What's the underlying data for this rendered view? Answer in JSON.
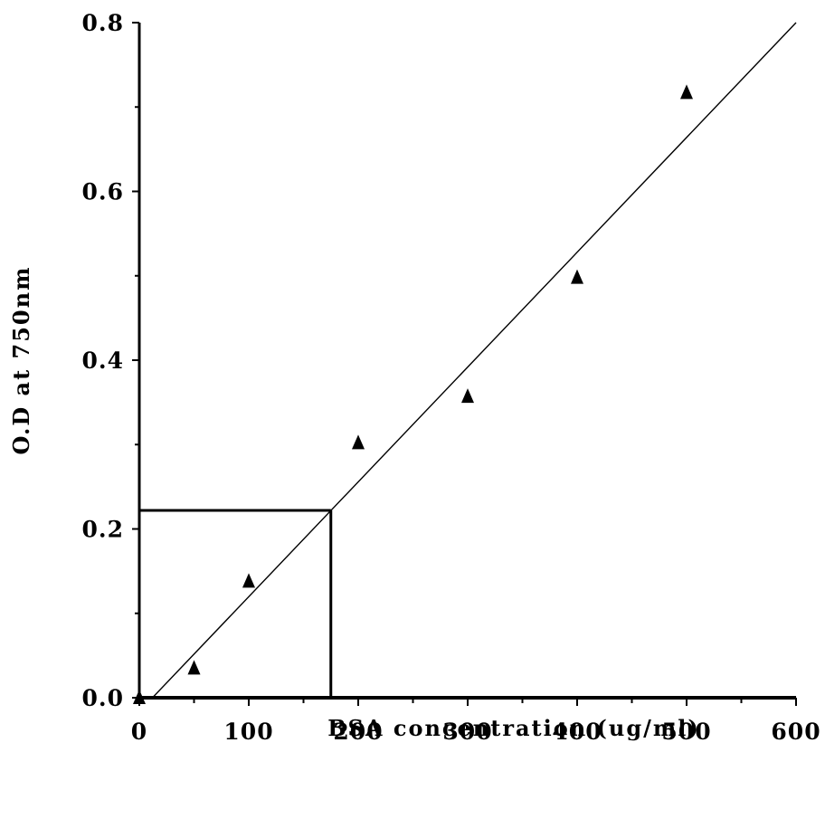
{
  "chart_data": {
    "type": "scatter",
    "title": "",
    "xlabel": "BSA concentration (ug/ml)",
    "ylabel": "O.D at 750nm",
    "xlim": [
      0,
      600
    ],
    "ylim": [
      0,
      0.8
    ],
    "xticks": [
      0,
      100,
      200,
      300,
      400,
      500,
      600
    ],
    "xtick_labels": [
      "0",
      "100",
      "200",
      "300",
      "400",
      "500",
      "600"
    ],
    "yticks": [
      0.0,
      0.2,
      0.4,
      0.6,
      0.8
    ],
    "ytick_labels": [
      "0.0",
      "0.2",
      "0.4",
      "0.6",
      "0.8"
    ],
    "grid": false,
    "marker": "triangle",
    "points": [
      {
        "x": 0,
        "y": 0.0
      },
      {
        "x": 50,
        "y": 0.035
      },
      {
        "x": 100,
        "y": 0.138
      },
      {
        "x": 200,
        "y": 0.302
      },
      {
        "x": 300,
        "y": 0.357
      },
      {
        "x": 400,
        "y": 0.498
      },
      {
        "x": 500,
        "y": 0.717
      }
    ],
    "fit_line": {
      "x": [
        12,
        600
      ],
      "y": [
        0.0,
        0.8
      ]
    },
    "readout": {
      "x": 175,
      "y": 0.222
    }
  }
}
